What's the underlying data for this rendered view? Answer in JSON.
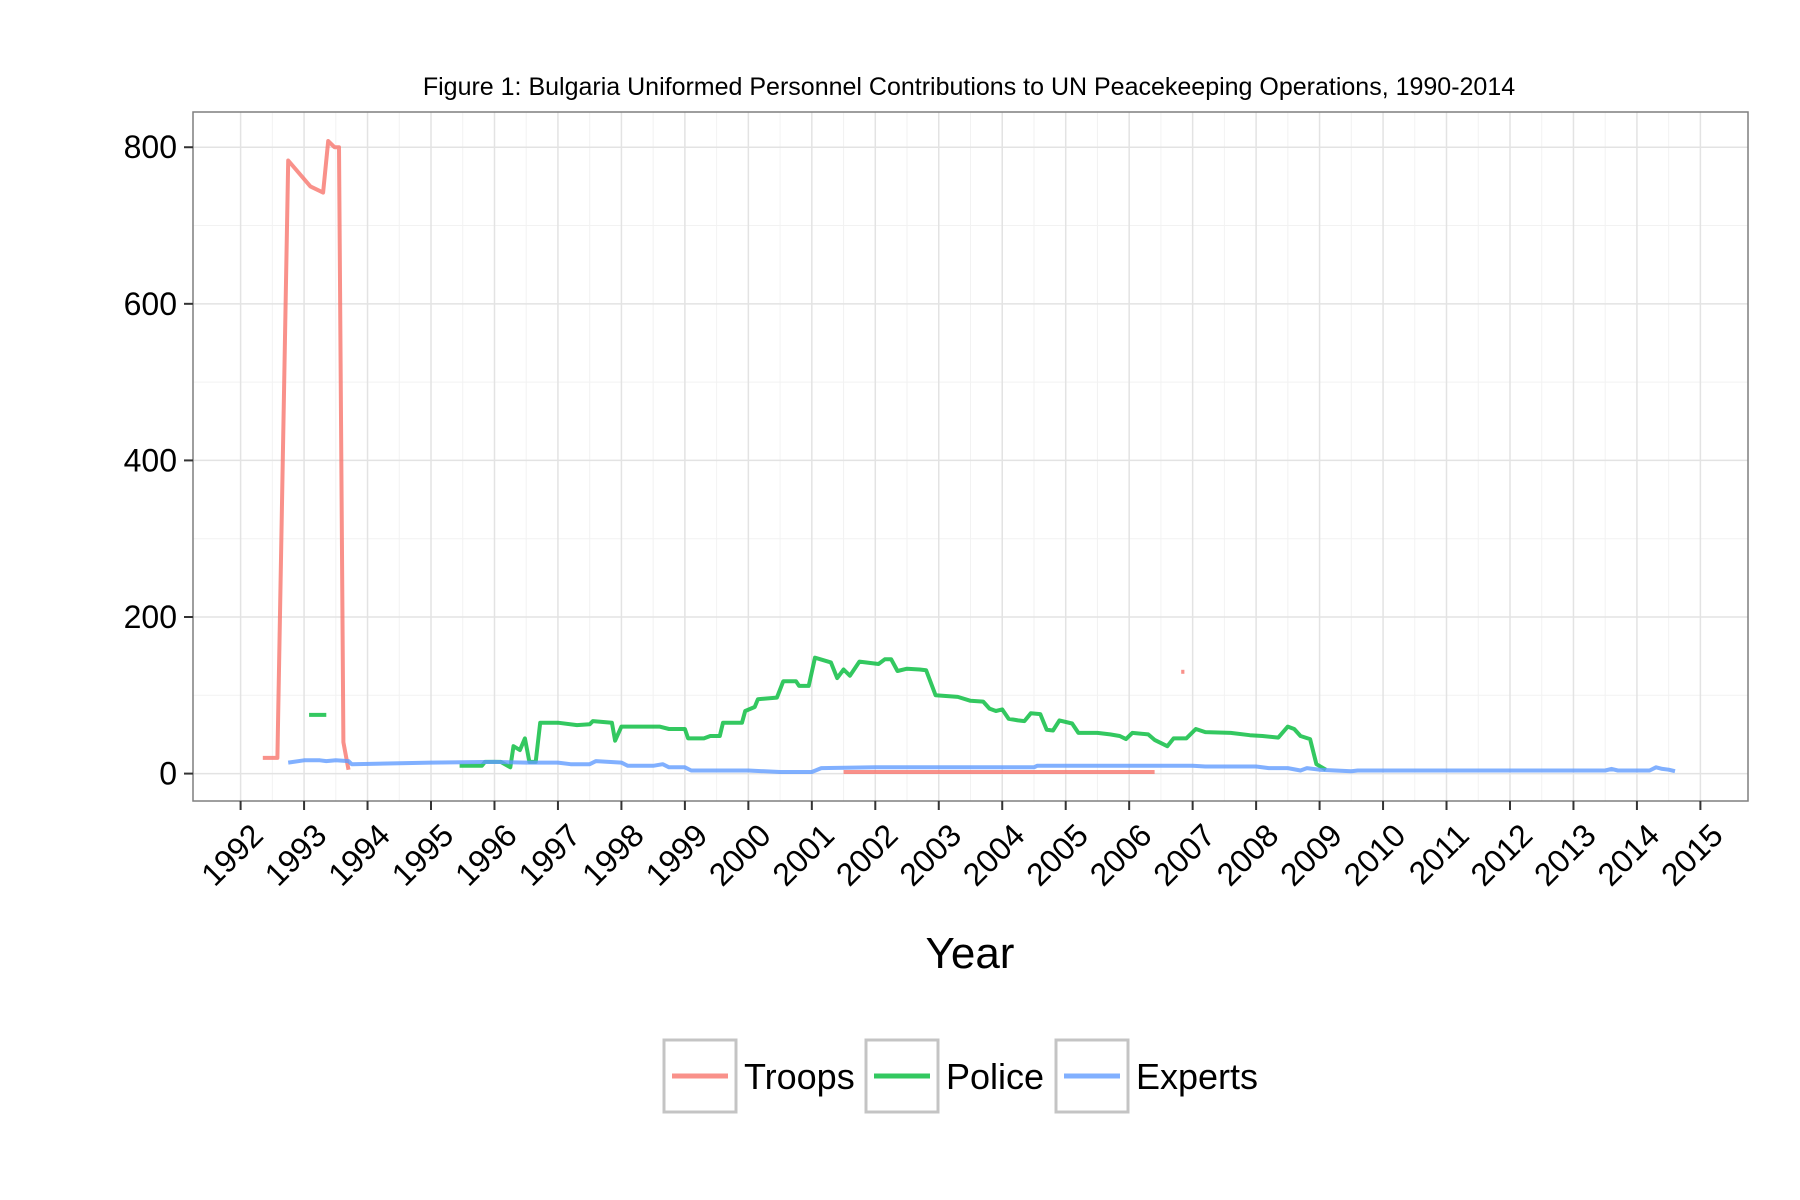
{
  "chart_data": {
    "type": "line",
    "title": "Figure 1: Bulgaria Uniformed Personnel Contributions to UN Peacekeeping Operations, 1990-2014",
    "xlabel": "Year",
    "ylabel": "",
    "xlim": [
      1991.25,
      2015.75
    ],
    "ylim": [
      -35,
      845
    ],
    "x_ticks": [
      1992,
      1993,
      1994,
      1995,
      1996,
      1997,
      1998,
      1999,
      2000,
      2001,
      2002,
      2003,
      2004,
      2005,
      2006,
      2007,
      2008,
      2009,
      2010,
      2011,
      2012,
      2013,
      2014,
      2015
    ],
    "x_tick_labels": [
      "1992",
      "1993",
      "1994",
      "1995",
      "1996",
      "1997",
      "1998",
      "1999",
      "2000",
      "2001",
      "2002",
      "2003",
      "2004",
      "2005",
      "2006",
      "2007",
      "2008",
      "2009",
      "2010",
      "2011",
      "2012",
      "2013",
      "2014",
      "2015"
    ],
    "y_ticks": [
      0,
      200,
      400,
      600,
      800
    ],
    "y_tick_labels": [
      "0",
      "200",
      "400",
      "600",
      "800"
    ],
    "grid": true,
    "legend_position": "bottom",
    "series": [
      {
        "name": "Troops",
        "color": "#F8766D",
        "segments": [
          [
            [
              1992.35,
              20
            ],
            [
              1992.58,
              20
            ],
            [
              1992.75,
              783
            ],
            [
              1993.1,
              750
            ],
            [
              1993.3,
              742
            ],
            [
              1993.38,
              808
            ],
            [
              1993.48,
              800
            ],
            [
              1993.55,
              800
            ],
            [
              1993.62,
              40
            ],
            [
              1993.7,
              5
            ]
          ],
          [
            [
              2001.5,
              2
            ],
            [
              2006.4,
              2
            ]
          ],
          [
            [
              2006.82,
              130
            ],
            [
              2006.87,
              130
            ]
          ]
        ]
      },
      {
        "name": "Police",
        "color": "#00BA38",
        "segments": [
          [
            [
              1993.08,
              75
            ],
            [
              1993.35,
              75
            ]
          ],
          [
            [
              1995.45,
              10
            ],
            [
              1995.8,
              10
            ],
            [
              1995.85,
              15
            ],
            [
              1996.1,
              15
            ],
            [
              1996.25,
              8
            ],
            [
              1996.3,
              35
            ],
            [
              1996.4,
              30
            ],
            [
              1996.48,
              45
            ],
            [
              1996.55,
              15
            ],
            [
              1996.65,
              15
            ],
            [
              1996.72,
              65
            ],
            [
              1997.0,
              65
            ],
            [
              1997.3,
              62
            ],
            [
              1997.5,
              63
            ],
            [
              1997.55,
              67
            ],
            [
              1997.85,
              65
            ],
            [
              1997.9,
              42
            ],
            [
              1998.0,
              60
            ],
            [
              1998.6,
              60
            ],
            [
              1998.75,
              57
            ],
            [
              1999.0,
              57
            ],
            [
              1999.05,
              45
            ],
            [
              1999.3,
              45
            ],
            [
              1999.4,
              48
            ],
            [
              1999.55,
              48
            ],
            [
              1999.6,
              65
            ],
            [
              1999.9,
              65
            ],
            [
              1999.95,
              80
            ],
            [
              2000.1,
              85
            ],
            [
              2000.15,
              95
            ],
            [
              2000.45,
              97
            ],
            [
              2000.55,
              118
            ],
            [
              2000.75,
              118
            ],
            [
              2000.8,
              112
            ],
            [
              2000.95,
              112
            ],
            [
              2001.05,
              148
            ],
            [
              2001.3,
              142
            ],
            [
              2001.4,
              122
            ],
            [
              2001.5,
              133
            ],
            [
              2001.6,
              125
            ],
            [
              2001.75,
              143
            ],
            [
              2002.05,
              140
            ],
            [
              2002.15,
              146
            ],
            [
              2002.25,
              146
            ],
            [
              2002.35,
              131
            ],
            [
              2002.5,
              134
            ],
            [
              2002.7,
              133
            ],
            [
              2002.8,
              132
            ],
            [
              2002.95,
              100
            ],
            [
              2003.3,
              98
            ],
            [
              2003.5,
              93
            ],
            [
              2003.7,
              92
            ],
            [
              2003.8,
              83
            ],
            [
              2003.9,
              80
            ],
            [
              2004.0,
              82
            ],
            [
              2004.1,
              70
            ],
            [
              2004.25,
              68
            ],
            [
              2004.35,
              67
            ],
            [
              2004.45,
              77
            ],
            [
              2004.6,
              76
            ],
            [
              2004.7,
              56
            ],
            [
              2004.8,
              55
            ],
            [
              2004.9,
              68
            ],
            [
              2005.1,
              64
            ],
            [
              2005.2,
              52
            ],
            [
              2005.5,
              52
            ],
            [
              2005.7,
              50
            ],
            [
              2005.85,
              48
            ],
            [
              2005.95,
              44
            ],
            [
              2006.05,
              52
            ],
            [
              2006.3,
              50
            ],
            [
              2006.4,
              43
            ],
            [
              2006.6,
              35
            ],
            [
              2006.7,
              45
            ],
            [
              2006.9,
              45
            ],
            [
              2007.05,
              57
            ],
            [
              2007.2,
              53
            ],
            [
              2007.6,
              52
            ],
            [
              2007.9,
              49
            ],
            [
              2008.1,
              48
            ],
            [
              2008.35,
              46
            ],
            [
              2008.5,
              60
            ],
            [
              2008.6,
              57
            ],
            [
              2008.7,
              48
            ],
            [
              2008.85,
              44
            ],
            [
              2008.95,
              12
            ],
            [
              2009.1,
              5
            ]
          ]
        ]
      },
      {
        "name": "Experts",
        "color": "#619CFF",
        "segments": [
          [
            [
              1992.75,
              14
            ],
            [
              1993.0,
              17
            ],
            [
              1993.25,
              17
            ],
            [
              1993.35,
              16
            ],
            [
              1993.5,
              17
            ],
            [
              1993.7,
              16
            ],
            [
              1993.75,
              12
            ],
            [
              1995.0,
              14
            ],
            [
              1996.0,
              15
            ],
            [
              1996.5,
              14
            ],
            [
              1997.0,
              14
            ],
            [
              1997.2,
              12
            ],
            [
              1997.5,
              12
            ],
            [
              1997.6,
              16
            ],
            [
              1997.8,
              15
            ],
            [
              1998.0,
              14
            ],
            [
              1998.1,
              10
            ],
            [
              1998.5,
              10
            ],
            [
              1998.65,
              12
            ],
            [
              1998.75,
              8
            ],
            [
              1999.0,
              8
            ],
            [
              1999.1,
              4
            ],
            [
              2000.0,
              4
            ],
            [
              2000.5,
              2
            ],
            [
              2001.0,
              2
            ],
            [
              2001.15,
              7
            ],
            [
              2002.0,
              8
            ],
            [
              2003.0,
              8
            ],
            [
              2004.5,
              8
            ],
            [
              2004.55,
              10
            ],
            [
              2006.0,
              10
            ],
            [
              2006.5,
              10
            ],
            [
              2007.0,
              10
            ],
            [
              2007.2,
              9
            ],
            [
              2008.0,
              9
            ],
            [
              2008.2,
              7
            ],
            [
              2008.5,
              7
            ],
            [
              2008.7,
              4
            ],
            [
              2008.8,
              7
            ],
            [
              2009.0,
              5
            ],
            [
              2009.5,
              3
            ],
            [
              2009.6,
              4
            ],
            [
              2010.0,
              4
            ],
            [
              2013.5,
              4
            ],
            [
              2013.6,
              6
            ],
            [
              2013.7,
              4
            ],
            [
              2014.2,
              4
            ],
            [
              2014.3,
              8
            ],
            [
              2014.4,
              6
            ],
            [
              2014.5,
              5
            ],
            [
              2014.6,
              3
            ]
          ]
        ]
      }
    ]
  }
}
